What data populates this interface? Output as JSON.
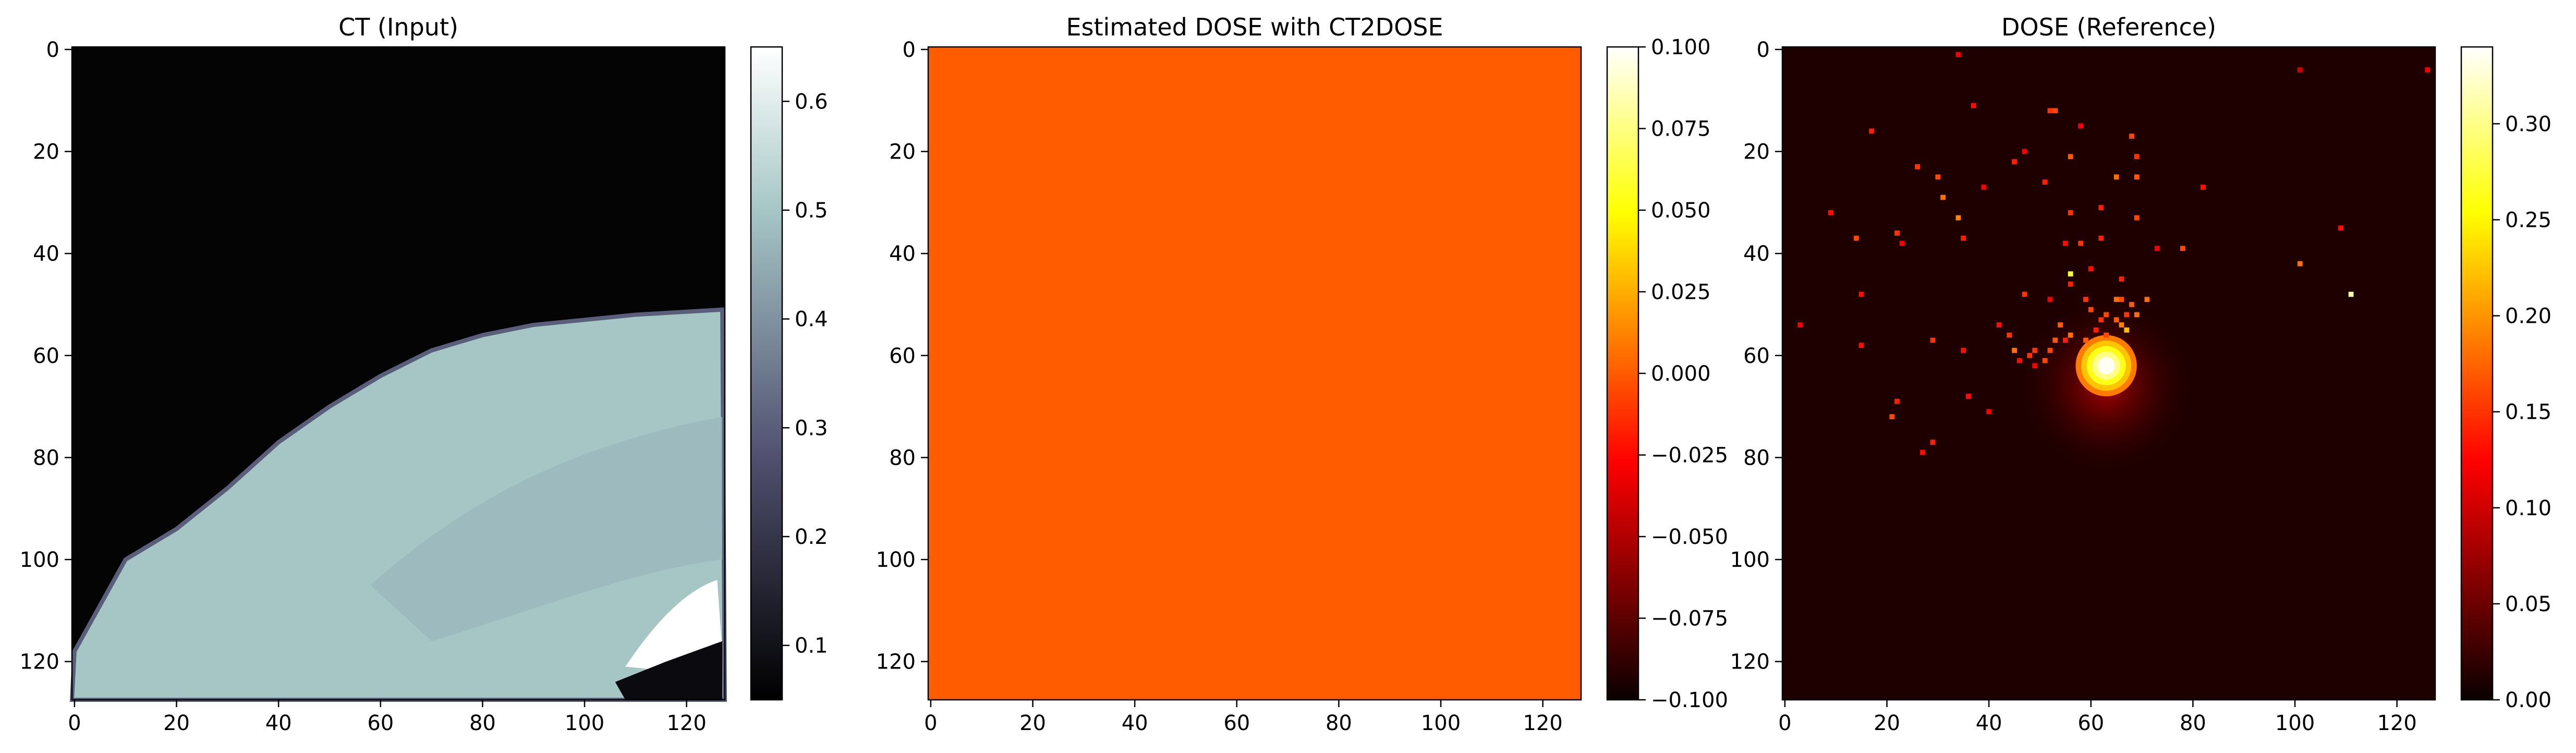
{
  "chart_data": [
    {
      "type": "heatmap",
      "title": "CT (Input)",
      "colormap": "bone",
      "grid": false,
      "x_ticks": [
        0,
        20,
        40,
        60,
        80,
        100,
        120
      ],
      "y_ticks": [
        0,
        20,
        40,
        60,
        80,
        100,
        120
      ],
      "xlim": [
        -0.5,
        127.5
      ],
      "ylim": [
        127.5,
        -0.5
      ],
      "colorbar": {
        "vmin": 0.05,
        "vmax": 0.65,
        "ticks": [
          0.1,
          0.2,
          0.3,
          0.4,
          0.5,
          0.6
        ],
        "tick_labels": [
          "0.1",
          "0.2",
          "0.3",
          "0.4",
          "0.5",
          "0.6"
        ]
      },
      "surface": {
        "background": 0.06,
        "body": 0.5,
        "bright_region": 0.65,
        "boundary": [
          [
            0,
            118
          ],
          [
            10,
            100
          ],
          [
            20,
            94
          ],
          [
            30,
            86
          ],
          [
            40,
            77
          ],
          [
            50,
            70
          ],
          [
            60,
            64
          ],
          [
            70,
            59
          ],
          [
            80,
            56
          ],
          [
            90,
            54
          ],
          [
            100,
            53
          ],
          [
            110,
            52
          ],
          [
            127,
            51
          ]
        ]
      }
    },
    {
      "type": "heatmap",
      "title": "Estimated DOSE with CT2DOSE",
      "colormap": "hot",
      "grid": false,
      "x_ticks": [
        0,
        20,
        40,
        60,
        80,
        100,
        120
      ],
      "y_ticks": [
        0,
        20,
        40,
        60,
        80,
        100,
        120
      ],
      "xlim": [
        -0.5,
        127.5
      ],
      "ylim": [
        127.5,
        -0.5
      ],
      "uniform_value": 0.0,
      "fill_color": "#ff5c00",
      "colorbar": {
        "vmin": -0.1,
        "vmax": 0.1,
        "ticks": [
          -0.1,
          -0.075,
          -0.05,
          -0.025,
          0.0,
          0.025,
          0.05,
          0.075,
          0.1
        ],
        "tick_labels": [
          "−0.100",
          "−0.075",
          "−0.050",
          "−0.025",
          "0.000",
          "0.025",
          "0.050",
          "0.075",
          "0.100"
        ]
      }
    },
    {
      "type": "heatmap",
      "title": "DOSE (Reference)",
      "colormap": "hot",
      "grid": false,
      "x_ticks": [
        0,
        20,
        40,
        60,
        80,
        100,
        120
      ],
      "y_ticks": [
        0,
        20,
        40,
        60,
        80,
        100,
        120
      ],
      "xlim": [
        -0.5,
        127.5
      ],
      "ylim": [
        127.5,
        -0.5
      ],
      "background_value": 0.01,
      "hotspot": {
        "x": 63,
        "y": 62,
        "radius": 6,
        "peak": 0.34
      },
      "scatter_points": [
        [
          34,
          1,
          0.12
        ],
        [
          101,
          4,
          0.1
        ],
        [
          126,
          4,
          0.12
        ],
        [
          37,
          11,
          0.13
        ],
        [
          52,
          12,
          0.15
        ],
        [
          53,
          12,
          0.16
        ],
        [
          58,
          15,
          0.12
        ],
        [
          17,
          16,
          0.14
        ],
        [
          68,
          17,
          0.16
        ],
        [
          47,
          20,
          0.12
        ],
        [
          56,
          21,
          0.17
        ],
        [
          69,
          21,
          0.15
        ],
        [
          26,
          23,
          0.15
        ],
        [
          45,
          22,
          0.14
        ],
        [
          30,
          25,
          0.16
        ],
        [
          65,
          25,
          0.18
        ],
        [
          69,
          25,
          0.17
        ],
        [
          31,
          29,
          0.18
        ],
        [
          51,
          26,
          0.14
        ],
        [
          39,
          27,
          0.12
        ],
        [
          82,
          27,
          0.13
        ],
        [
          9,
          32,
          0.13
        ],
        [
          34,
          33,
          0.19
        ],
        [
          56,
          32,
          0.15
        ],
        [
          62,
          31,
          0.14
        ],
        [
          69,
          33,
          0.16
        ],
        [
          109,
          35,
          0.13
        ],
        [
          14,
          37,
          0.16
        ],
        [
          22,
          36,
          0.15
        ],
        [
          23,
          38,
          0.12
        ],
        [
          35,
          37,
          0.14
        ],
        [
          62,
          37,
          0.14
        ],
        [
          55,
          38,
          0.13
        ],
        [
          58,
          38,
          0.15
        ],
        [
          73,
          39,
          0.12
        ],
        [
          78,
          39,
          0.16
        ],
        [
          101,
          42,
          0.18
        ],
        [
          56,
          44,
          0.27
        ],
        [
          60,
          43,
          0.13
        ],
        [
          66,
          45,
          0.14
        ],
        [
          56,
          46,
          0.14
        ],
        [
          47,
          48,
          0.15
        ],
        [
          15,
          48,
          0.13
        ],
        [
          111,
          48,
          0.31
        ],
        [
          52,
          49,
          0.12
        ],
        [
          59,
          49,
          0.15
        ],
        [
          65,
          49,
          0.18
        ],
        [
          66,
          49,
          0.16
        ],
        [
          68,
          50,
          0.17
        ],
        [
          71,
          49,
          0.18
        ],
        [
          60,
          51,
          0.16
        ],
        [
          63,
          52,
          0.16
        ],
        [
          67,
          52,
          0.15
        ],
        [
          69,
          52,
          0.18
        ],
        [
          62,
          53,
          0.15
        ],
        [
          65,
          53,
          0.17
        ],
        [
          54,
          54,
          0.17
        ],
        [
          61,
          55,
          0.14
        ],
        [
          66,
          54,
          0.19
        ],
        [
          67,
          55,
          0.22
        ],
        [
          63,
          56,
          0.16
        ],
        [
          56,
          56,
          0.18
        ],
        [
          53,
          57,
          0.17
        ],
        [
          3,
          54,
          0.12
        ],
        [
          42,
          54,
          0.13
        ],
        [
          44,
          56,
          0.15
        ],
        [
          55,
          57,
          0.14
        ],
        [
          59,
          57,
          0.17
        ],
        [
          29,
          57,
          0.15
        ],
        [
          15,
          58,
          0.13
        ],
        [
          35,
          59,
          0.13
        ],
        [
          49,
          59,
          0.15
        ],
        [
          52,
          59,
          0.16
        ],
        [
          45,
          59,
          0.18
        ],
        [
          46,
          61,
          0.13
        ],
        [
          48,
          60,
          0.15
        ],
        [
          51,
          61,
          0.16
        ],
        [
          49,
          62,
          0.12
        ],
        [
          22,
          69,
          0.14
        ],
        [
          36,
          68,
          0.13
        ],
        [
          21,
          72,
          0.16
        ],
        [
          40,
          71,
          0.12
        ],
        [
          29,
          77,
          0.14
        ],
        [
          27,
          79,
          0.13
        ]
      ],
      "colorbar": {
        "vmin": 0.0,
        "vmax": 0.34,
        "ticks": [
          0.0,
          0.05,
          0.1,
          0.15,
          0.2,
          0.25,
          0.3
        ],
        "tick_labels": [
          "0.00",
          "0.05",
          "0.10",
          "0.15",
          "0.20",
          "0.25",
          "0.30"
        ]
      }
    }
  ]
}
